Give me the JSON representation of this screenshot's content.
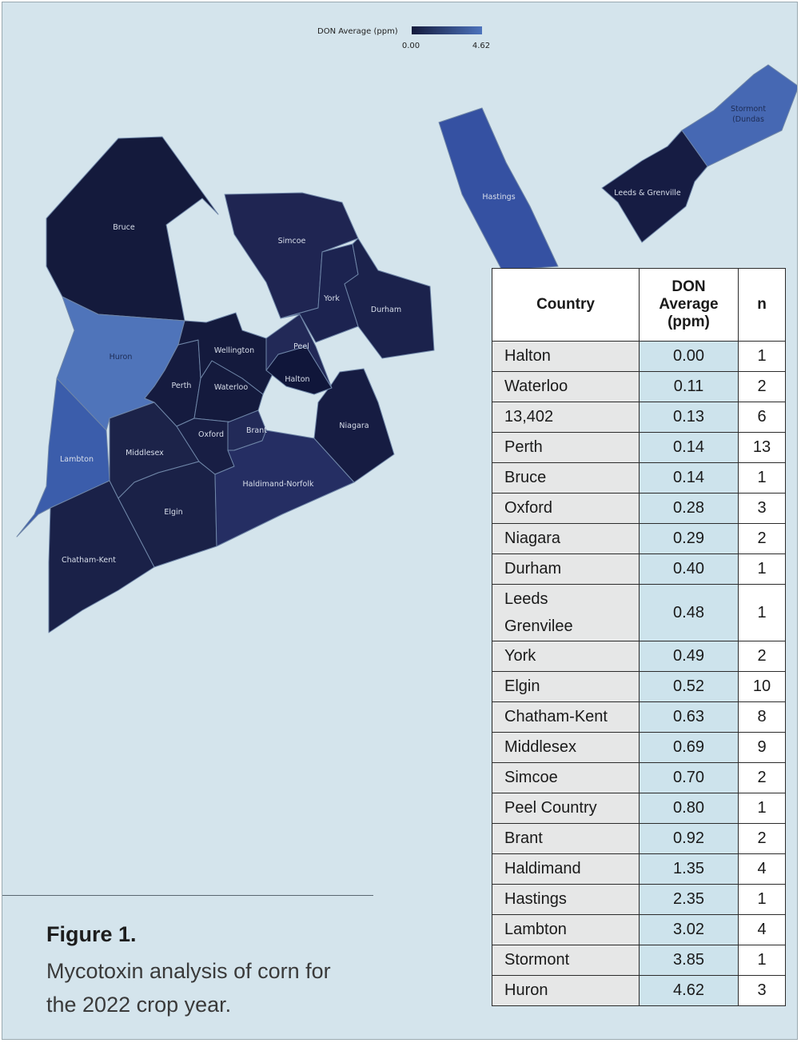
{
  "legend": {
    "title": "DON Average (ppm)",
    "min_label": "0.00",
    "max_label": "4.62",
    "color_low": "#141a3c",
    "color_high": "#4d73bc"
  },
  "map": {
    "regions": [
      {
        "id": "bruce",
        "label": "Bruce",
        "color": "#141a3c"
      },
      {
        "id": "huron",
        "label": "Huron",
        "color": "#4f74ba"
      },
      {
        "id": "lambton",
        "label": "Lambton",
        "color": "#3b5dab"
      },
      {
        "id": "chatham-kent",
        "label": "Chatham-Kent",
        "color": "#1a2148"
      },
      {
        "id": "middlesex",
        "label": "Middlesex",
        "color": "#1c2349"
      },
      {
        "id": "elgin",
        "label": "Elgin",
        "color": "#1a2147"
      },
      {
        "id": "perth",
        "label": "Perth",
        "color": "#151b3f"
      },
      {
        "id": "waterloo",
        "label": "Waterloo",
        "color": "#141a3d"
      },
      {
        "id": "wellington",
        "label": "Wellington",
        "color": "#141a3d"
      },
      {
        "id": "oxford",
        "label": "Oxford",
        "color": "#181e44"
      },
      {
        "id": "brant",
        "label": "Brant",
        "color": "#222a58"
      },
      {
        "id": "haldimand-norfolk",
        "label": "Haldimand-Norfolk",
        "color": "#252e63"
      },
      {
        "id": "niagara",
        "label": "Niagara",
        "color": "#161c42"
      },
      {
        "id": "halton",
        "label": "Halton",
        "color": "#10163a"
      },
      {
        "id": "peel",
        "label": "Peel",
        "color": "#222957"
      },
      {
        "id": "simcoe",
        "label": "Simcoe",
        "color": "#1f2552"
      },
      {
        "id": "york",
        "label": "York",
        "color": "#1c2350"
      },
      {
        "id": "durham",
        "label": "Durham",
        "color": "#1b224c"
      },
      {
        "id": "hastings",
        "label": "Hastings",
        "color": "#3551a2"
      },
      {
        "id": "leeds",
        "label": "Leeds & Grenville",
        "color": "#161c43"
      },
      {
        "id": "stormont",
        "label": "Stormont",
        "label2": "(Dundas",
        "color": "#4668b3"
      }
    ]
  },
  "table": {
    "headers": [
      "Country",
      "DON Average (ppm)",
      "n"
    ],
    "header_lines": {
      "don": [
        "DON",
        "Average",
        "(ppm)"
      ]
    },
    "rows": [
      {
        "name": "Halton",
        "value": "0.00",
        "n": "1"
      },
      {
        "name": "Waterloo",
        "value": "0.11",
        "n": "2"
      },
      {
        "name": "13,402",
        "value": "0.13",
        "n": "6"
      },
      {
        "name": "Perth",
        "value": "0.14",
        "n": "13"
      },
      {
        "name": "Bruce",
        "value": "0.14",
        "n": "1"
      },
      {
        "name": "Oxford",
        "value": "0.28",
        "n": "3"
      },
      {
        "name": "Niagara",
        "value": "0.29",
        "n": "2"
      },
      {
        "name": "Durham",
        "value": "0.40",
        "n": "1"
      },
      {
        "name": "Leeds Grenvilee",
        "name_lines": [
          "Leeds",
          "Grenvilee"
        ],
        "value": "0.48",
        "n": "1"
      },
      {
        "name": "York",
        "value": "0.49",
        "n": "2"
      },
      {
        "name": "Elgin",
        "value": "0.52",
        "n": "10"
      },
      {
        "name": "Chatham-Kent",
        "value": "0.63",
        "n": "8"
      },
      {
        "name": "Middlesex",
        "value": "0.69",
        "n": "9"
      },
      {
        "name": "Simcoe",
        "value": "0.70",
        "n": "2"
      },
      {
        "name": "Peel Country",
        "value": "0.80",
        "n": "1"
      },
      {
        "name": "Brant",
        "value": "0.92",
        "n": "2"
      },
      {
        "name": "Haldimand",
        "value": "1.35",
        "n": "4"
      },
      {
        "name": "Hastings",
        "value": "2.35",
        "n": "1"
      },
      {
        "name": "Lambton",
        "value": "3.02",
        "n": "4"
      },
      {
        "name": "Stormont",
        "value": "3.85",
        "n": "1"
      },
      {
        "name": "Huron",
        "value": "4.62",
        "n": "3"
      }
    ]
  },
  "caption": {
    "title": "Figure 1.",
    "text": "Mycotoxin analysis of corn for the 2022 crop year."
  }
}
